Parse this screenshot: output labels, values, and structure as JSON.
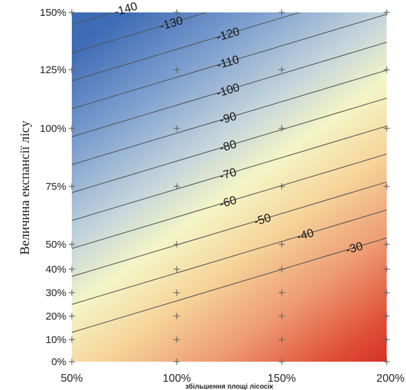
{
  "chart_data": {
    "type": "contour",
    "title": "",
    "xlabel": "збільшення площі лісосік",
    "ylabel": "Величина експансії лісу",
    "x_ticks": [
      "50%",
      "100%",
      "150%",
      "200%"
    ],
    "x_values": [
      50,
      100,
      150,
      200
    ],
    "y_ticks": [
      "0%",
      "10%",
      "20%",
      "30%",
      "40%",
      "50%",
      "75%",
      "100%",
      "125%",
      "150%"
    ],
    "y_values": [
      0,
      10,
      20,
      30,
      40,
      50,
      75,
      100,
      125,
      150
    ],
    "xlim": [
      50,
      200
    ],
    "contour_levels": [
      -140,
      -130,
      -120,
      -110,
      -100,
      -90,
      -80,
      -70,
      -60,
      -50,
      -40,
      -30
    ],
    "contour_labels": [
      "-140",
      "-130",
      "-120",
      "-110",
      "-100",
      "-90",
      "-80",
      "-70",
      "-60",
      "-50",
      "-40",
      "-30"
    ],
    "colormap": {
      "low": "#3d6bb5",
      "mid": "#f5f5c0",
      "high": "#dc2a22"
    },
    "sample_points": [
      {
        "x": 50,
        "y": 0
      },
      {
        "x": 50,
        "y": 10
      },
      {
        "x": 50,
        "y": 20
      },
      {
        "x": 50,
        "y": 30
      },
      {
        "x": 50,
        "y": 40
      },
      {
        "x": 50,
        "y": 50
      },
      {
        "x": 50,
        "y": 75
      },
      {
        "x": 50,
        "y": 100
      },
      {
        "x": 50,
        "y": 125
      },
      {
        "x": 50,
        "y": 150
      },
      {
        "x": 100,
        "y": 0
      },
      {
        "x": 100,
        "y": 10
      },
      {
        "x": 100,
        "y": 20
      },
      {
        "x": 100,
        "y": 30
      },
      {
        "x": 100,
        "y": 40
      },
      {
        "x": 100,
        "y": 50
      },
      {
        "x": 100,
        "y": 75
      },
      {
        "x": 100,
        "y": 100
      },
      {
        "x": 100,
        "y": 125
      },
      {
        "x": 100,
        "y": 150
      },
      {
        "x": 150,
        "y": 0
      },
      {
        "x": 150,
        "y": 10
      },
      {
        "x": 150,
        "y": 20
      },
      {
        "x": 150,
        "y": 30
      },
      {
        "x": 150,
        "y": 40
      },
      {
        "x": 150,
        "y": 50
      },
      {
        "x": 150,
        "y": 75
      },
      {
        "x": 150,
        "y": 100
      },
      {
        "x": 150,
        "y": 125
      },
      {
        "x": 150,
        "y": 150
      },
      {
        "x": 200,
        "y": 0
      },
      {
        "x": 200,
        "y": 10
      },
      {
        "x": 200,
        "y": 20
      },
      {
        "x": 200,
        "y": 30
      },
      {
        "x": 200,
        "y": 40
      },
      {
        "x": 200,
        "y": 50
      },
      {
        "x": 200,
        "y": 75
      },
      {
        "x": 200,
        "y": 100
      },
      {
        "x": 200,
        "y": 125
      },
      {
        "x": 200,
        "y": 150
      }
    ]
  }
}
